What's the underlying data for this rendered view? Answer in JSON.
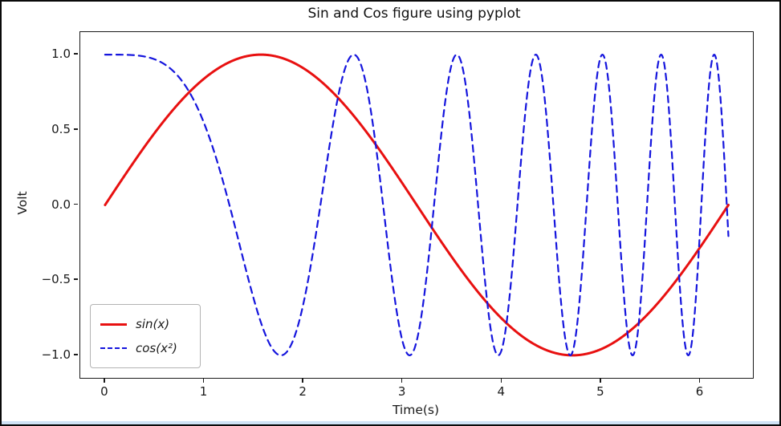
{
  "chart_data": {
    "type": "line",
    "title": "Sin and Cos figure using pyplot",
    "xlabel": "Time(s)",
    "ylabel": "Volt",
    "x_range": [
      0,
      6.2832
    ],
    "xlim": [
      -0.25,
      6.53
    ],
    "ylim": [
      -1.15,
      1.15
    ],
    "x_ticks": [
      0,
      1,
      2,
      3,
      4,
      5,
      6
    ],
    "x_tick_labels": [
      "0",
      "1",
      "2",
      "3",
      "4",
      "5",
      "6"
    ],
    "y_ticks": [
      1.0,
      0.5,
      0.0,
      -0.5,
      -1.0
    ],
    "y_tick_labels": [
      "1.0",
      "0.5",
      "0.0",
      "−0.5",
      "−1.0"
    ],
    "grid": false,
    "legend_position": "lower-left",
    "series": [
      {
        "name": "sin(x)",
        "formula": "sin(x)",
        "color": "#e81010",
        "style": "solid",
        "width": 3
      },
      {
        "name": "cos(x²)",
        "formula": "cos(x^2)",
        "color": "#1515dd",
        "style": "dashed",
        "width": 2.2,
        "dash": "8 6"
      }
    ]
  }
}
